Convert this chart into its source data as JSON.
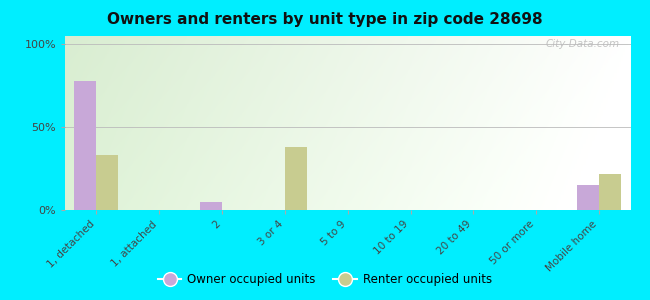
{
  "title": "Owners and renters by unit type in zip code 28698",
  "categories": [
    "1, detached",
    "1, attached",
    "2",
    "3 or 4",
    "5 to 9",
    "10 to 19",
    "20 to 49",
    "50 or more",
    "Mobile home"
  ],
  "owner_values": [
    78,
    0,
    5,
    0,
    0,
    0,
    0,
    0,
    15
  ],
  "renter_values": [
    33,
    0,
    0,
    38,
    0,
    0,
    0,
    0,
    22
  ],
  "owner_color": "#c8a8d8",
  "renter_color": "#c8cc90",
  "bg_color_topleft": "#d8efd0",
  "bg_color_right": "#f0f8ec",
  "outer_bg": "#00eeff",
  "yticks": [
    0,
    50,
    100
  ],
  "ylabels": [
    "0%",
    "50%",
    "100%"
  ],
  "ylim": [
    0,
    105
  ],
  "bar_width": 0.35,
  "watermark": "City-Data.com",
  "legend_owner": "Owner occupied units",
  "legend_renter": "Renter occupied units"
}
